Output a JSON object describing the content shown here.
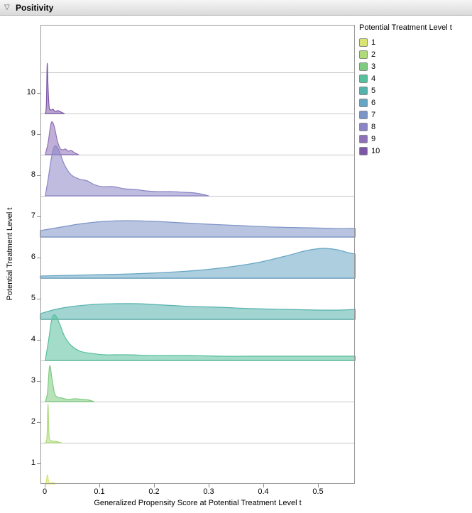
{
  "header": {
    "title": "Positivity",
    "disclosure_icon": "▽"
  },
  "axes": {
    "x_label": "Generalized Propensity Score at Potential Treatment Level t",
    "y_label": "Potential Treatment Level t",
    "y_tick_labels": [
      "10",
      "9",
      "8",
      "7",
      "6",
      "5",
      "4",
      "3",
      "2",
      "1"
    ],
    "x_tick_labels": [
      "0",
      "0.1",
      "0.2",
      "0.3",
      "0.4",
      "0.5"
    ]
  },
  "legend": {
    "title": "Potential Treatment Level t",
    "items": [
      {
        "label": "1",
        "color": "#d9e370"
      },
      {
        "label": "2",
        "color": "#aeda7a"
      },
      {
        "label": "3",
        "color": "#7ecb80"
      },
      {
        "label": "4",
        "color": "#57bf9b"
      },
      {
        "label": "5",
        "color": "#55b2ad"
      },
      {
        "label": "6",
        "color": "#67a5c5"
      },
      {
        "label": "7",
        "color": "#7d94c7"
      },
      {
        "label": "8",
        "color": "#8b85c6"
      },
      {
        "label": "9",
        "color": "#8d70b8"
      },
      {
        "label": "10",
        "color": "#7c57a5"
      }
    ]
  },
  "chart_data": {
    "type": "area",
    "variant": "ridgeline-density",
    "title": "Positivity",
    "xlabel": "Generalized Propensity Score at Potential Treatment Level t",
    "ylabel": "Potential Treatment Level t",
    "xlim": [
      -0.008,
      0.568
    ],
    "x_ticks": [
      0,
      0.1,
      0.2,
      0.3,
      0.4,
      0.5
    ],
    "y_categories": [
      1,
      2,
      3,
      4,
      5,
      6,
      7,
      8,
      9,
      10
    ],
    "grid": "horizontal-row-separators",
    "legend_position": "top-right",
    "note": "Each level is a density of the generalized propensity score drawn on its own baseline row; points are [score_x, estimated_peak_height_px_above_baseline]",
    "levels": [
      {
        "level": 1,
        "color": "#d9e370",
        "points": [
          [
            0.001,
            0
          ],
          [
            0.003,
            3
          ],
          [
            0.005,
            13
          ],
          [
            0.007,
            4
          ],
          [
            0.01,
            1
          ],
          [
            0.015,
            2
          ],
          [
            0.02,
            0
          ]
        ]
      },
      {
        "level": 2,
        "color": "#aeda7a",
        "points": [
          [
            0.001,
            0
          ],
          [
            0.004,
            6
          ],
          [
            0.006,
            54
          ],
          [
            0.008,
            10
          ],
          [
            0.012,
            3
          ],
          [
            0.02,
            2
          ],
          [
            0.03,
            0
          ]
        ]
      },
      {
        "level": 3,
        "color": "#7ecb80",
        "points": [
          [
            0.001,
            0
          ],
          [
            0.005,
            12
          ],
          [
            0.009,
            50
          ],
          [
            0.013,
            34
          ],
          [
            0.018,
            12
          ],
          [
            0.024,
            6
          ],
          [
            0.032,
            5
          ],
          [
            0.042,
            3
          ],
          [
            0.055,
            4
          ],
          [
            0.07,
            3
          ],
          [
            0.082,
            2
          ],
          [
            0.09,
            0
          ]
        ]
      },
      {
        "level": 4,
        "color": "#57bf9b",
        "points": [
          [
            0.001,
            0
          ],
          [
            0.007,
            28
          ],
          [
            0.013,
            58
          ],
          [
            0.019,
            64
          ],
          [
            0.027,
            52
          ],
          [
            0.037,
            33
          ],
          [
            0.05,
            20
          ],
          [
            0.065,
            13
          ],
          [
            0.085,
            10
          ],
          [
            0.11,
            8
          ],
          [
            0.15,
            8
          ],
          [
            0.2,
            7
          ],
          [
            0.26,
            7
          ],
          [
            0.32,
            6
          ],
          [
            0.38,
            6
          ],
          [
            0.45,
            6
          ],
          [
            0.52,
            6
          ],
          [
            0.568,
            6
          ]
        ]
      },
      {
        "level": 5,
        "color": "#55b2ad",
        "points": [
          [
            -0.008,
            8
          ],
          [
            0.02,
            14
          ],
          [
            0.05,
            18
          ],
          [
            0.09,
            21
          ],
          [
            0.13,
            22
          ],
          [
            0.17,
            22
          ],
          [
            0.22,
            20
          ],
          [
            0.27,
            18
          ],
          [
            0.32,
            17
          ],
          [
            0.38,
            15
          ],
          [
            0.44,
            14
          ],
          [
            0.5,
            13
          ],
          [
            0.54,
            13
          ],
          [
            0.568,
            14
          ]
        ]
      },
      {
        "level": 6,
        "color": "#67a5c5",
        "points": [
          [
            -0.008,
            3
          ],
          [
            0.05,
            4
          ],
          [
            0.1,
            5
          ],
          [
            0.16,
            6
          ],
          [
            0.22,
            8
          ],
          [
            0.28,
            11
          ],
          [
            0.34,
            16
          ],
          [
            0.39,
            22
          ],
          [
            0.44,
            31
          ],
          [
            0.48,
            39
          ],
          [
            0.51,
            42
          ],
          [
            0.535,
            40
          ],
          [
            0.555,
            36
          ],
          [
            0.568,
            34
          ]
        ]
      },
      {
        "level": 7,
        "color": "#7d94c7",
        "points": [
          [
            -0.008,
            9
          ],
          [
            0.03,
            14
          ],
          [
            0.07,
            19
          ],
          [
            0.11,
            22
          ],
          [
            0.15,
            23
          ],
          [
            0.2,
            22
          ],
          [
            0.25,
            20
          ],
          [
            0.3,
            18
          ],
          [
            0.36,
            16
          ],
          [
            0.42,
            14
          ],
          [
            0.48,
            13
          ],
          [
            0.53,
            12
          ],
          [
            0.568,
            12
          ]
        ]
      },
      {
        "level": 8,
        "color": "#8b85c6",
        "points": [
          [
            0.001,
            0
          ],
          [
            0.006,
            22
          ],
          [
            0.012,
            52
          ],
          [
            0.018,
            70
          ],
          [
            0.026,
            64
          ],
          [
            0.036,
            44
          ],
          [
            0.048,
            30
          ],
          [
            0.062,
            24
          ],
          [
            0.078,
            21
          ],
          [
            0.09,
            16
          ],
          [
            0.105,
            13
          ],
          [
            0.125,
            13
          ],
          [
            0.145,
            10
          ],
          [
            0.165,
            9
          ],
          [
            0.185,
            7
          ],
          [
            0.205,
            6
          ],
          [
            0.23,
            6
          ],
          [
            0.255,
            5
          ],
          [
            0.275,
            4
          ],
          [
            0.29,
            2
          ],
          [
            0.3,
            0
          ]
        ]
      },
      {
        "level": 9,
        "color": "#8d70b8",
        "points": [
          [
            0.001,
            0
          ],
          [
            0.006,
            16
          ],
          [
            0.011,
            42
          ],
          [
            0.014,
            46
          ],
          [
            0.018,
            38
          ],
          [
            0.023,
            20
          ],
          [
            0.028,
            9
          ],
          [
            0.033,
            7
          ],
          [
            0.038,
            8
          ],
          [
            0.043,
            5
          ],
          [
            0.048,
            6
          ],
          [
            0.054,
            3
          ],
          [
            0.062,
            0
          ]
        ]
      },
      {
        "level": 10,
        "color": "#7c57a5",
        "points": [
          [
            0.001,
            0
          ],
          [
            0.003,
            12
          ],
          [
            0.0045,
            70
          ],
          [
            0.006,
            40
          ],
          [
            0.008,
            10
          ],
          [
            0.011,
            5
          ],
          [
            0.015,
            6
          ],
          [
            0.019,
            3
          ],
          [
            0.024,
            4
          ],
          [
            0.03,
            2
          ],
          [
            0.036,
            0
          ]
        ]
      }
    ]
  }
}
